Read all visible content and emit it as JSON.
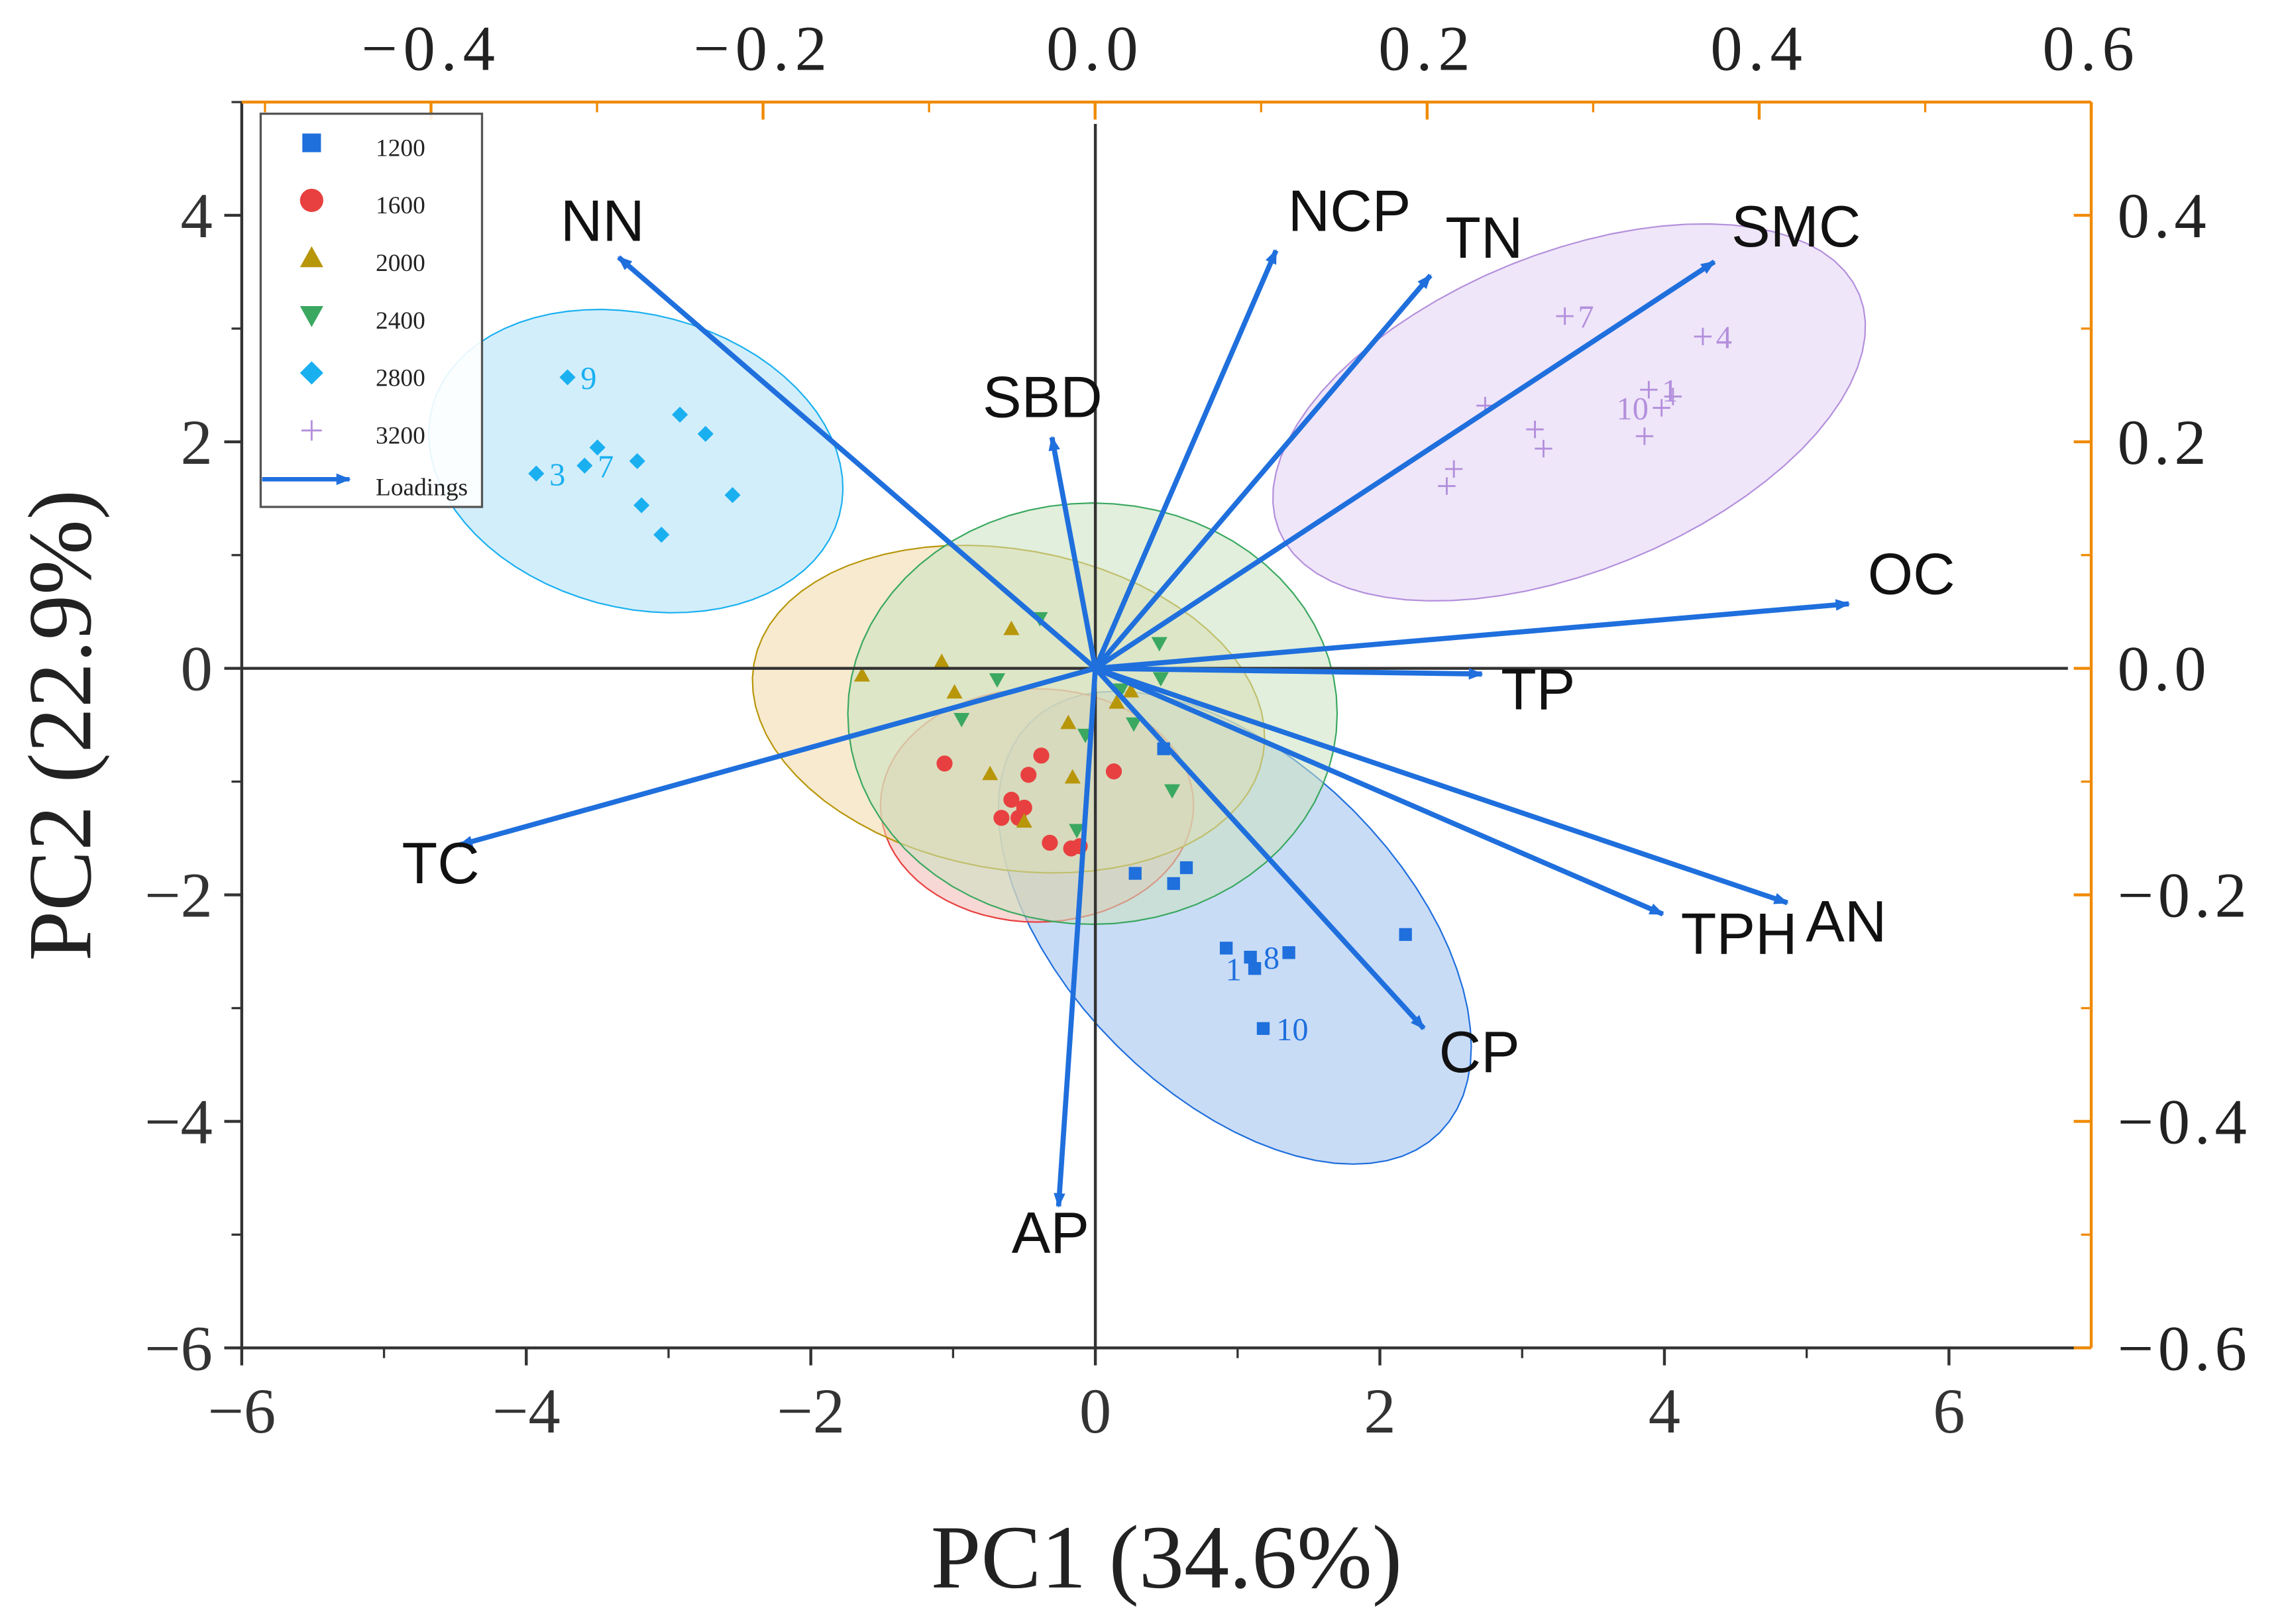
{
  "chart_data": {
    "type": "scatter",
    "subtype": "pca-biplot",
    "xlabel": "PC1 (34.6%)",
    "ylabel": "PC2 (22.9%)",
    "xlim": [
      -6,
      7
    ],
    "ylim": [
      -6,
      5
    ],
    "x_ticks": [
      "-6",
      "-4",
      "-2",
      "0",
      "2",
      "4",
      "6"
    ],
    "x_tick_values": [
      -6,
      -4,
      -2,
      0,
      2,
      4,
      6
    ],
    "y_ticks": [
      "-6",
      "-4",
      "-2",
      "0",
      "2",
      "4"
    ],
    "y_tick_values": [
      -6,
      -4,
      -2,
      0,
      2,
      4
    ],
    "top_axis": {
      "lim": [
        -0.514,
        0.6
      ],
      "ticks": [
        "-0.4",
        "-0.2",
        "0.0",
        "0.2",
        "0.4",
        "0.6"
      ],
      "tick_values": [
        -0.4,
        -0.2,
        0,
        0.2,
        0.4,
        0.6
      ]
    },
    "right_axis": {
      "lim": [
        -0.6,
        0.5
      ],
      "ticks": [
        "-0.6",
        "-0.4",
        "-0.2",
        "0.0",
        "0.2",
        "0.4"
      ],
      "tick_values": [
        -0.6,
        -0.4,
        -0.2,
        0,
        0.2,
        0.4
      ]
    },
    "secondary_axis_color": "#f08a00",
    "legend_position": "top-left",
    "series": [
      {
        "name": "1200",
        "marker": "square",
        "color": "#1f6fdd",
        "fill": "#9cc0ee",
        "ellipse": {
          "center": [
            0.98,
            -2.29
          ],
          "a": [
            1.44,
            -1.81
          ],
          "b": [
            0.83,
            1.04
          ]
        },
        "points": [
          [
            0.48,
            -0.71
          ],
          [
            0.28,
            -1.81
          ],
          [
            0.64,
            -1.76
          ],
          [
            0.55,
            -1.9
          ],
          [
            0.92,
            -2.47
          ],
          [
            1.09,
            -2.55,
            "8"
          ],
          [
            1.12,
            -2.65,
            "1"
          ],
          [
            1.36,
            -2.51
          ],
          [
            1.18,
            -3.18,
            "10"
          ],
          [
            2.18,
            -2.35
          ]
        ]
      },
      {
        "name": "1600",
        "marker": "circle",
        "color": "#e84040",
        "fill": "#f2b8b0",
        "ellipse": {
          "center": [
            -0.41,
            -1.21
          ],
          "a": [
            1.1,
            0
          ],
          "b": [
            0,
            1.03
          ]
        },
        "points": [
          [
            -1.06,
            -0.84
          ],
          [
            -0.38,
            -0.77
          ],
          [
            -0.47,
            -0.94
          ],
          [
            0.13,
            -0.91
          ],
          [
            -0.59,
            -1.16
          ],
          [
            -0.5,
            -1.23
          ],
          [
            -0.66,
            -1.32
          ],
          [
            -0.54,
            -1.32
          ],
          [
            -0.32,
            -1.54
          ],
          [
            -0.17,
            -1.59
          ],
          [
            -0.11,
            -1.57
          ]
        ]
      },
      {
        "name": "2000",
        "marker": "triangle-up",
        "color": "#b8960a",
        "fill": "#f0d9a8",
        "ellipse": {
          "center": [
            -0.61,
            -0.36
          ],
          "a": [
            1.79,
            -0.4
          ],
          "b": [
            -0.19,
            -1.39
          ]
        },
        "points": [
          [
            -1.64,
            -0.06
          ],
          [
            -1.08,
            0.06
          ],
          [
            -0.59,
            0.35
          ],
          [
            -0.99,
            -0.21
          ],
          [
            -0.74,
            -0.93
          ],
          [
            -0.19,
            -0.48
          ],
          [
            -0.16,
            -0.96
          ],
          [
            0.25,
            -0.2
          ],
          [
            -0.5,
            -1.35
          ],
          [
            0.15,
            -0.3
          ]
        ]
      },
      {
        "name": "2400",
        "marker": "triangle-down",
        "color": "#3aa860",
        "fill": "#c8e2c0",
        "ellipse": {
          "center": [
            -0.02,
            -0.4
          ],
          "a": [
            1.72,
            0
          ],
          "b": [
            0,
            1.86
          ]
        },
        "points": [
          [
            -0.39,
            0.44
          ],
          [
            0.45,
            0.22
          ],
          [
            -0.69,
            -0.1
          ],
          [
            -0.94,
            -0.45
          ],
          [
            -0.07,
            -0.59
          ],
          [
            0.27,
            -0.49
          ],
          [
            0.46,
            -0.09
          ],
          [
            0.54,
            -1.08
          ],
          [
            -0.13,
            -1.43
          ],
          [
            0.18,
            -0.19
          ]
        ]
      },
      {
        "name": "2800",
        "marker": "diamond",
        "color": "#1ab0f0",
        "fill": "#aee0f8",
        "ellipse": {
          "center": [
            -3.23,
            1.83
          ],
          "a": [
            1.43,
            -0.48
          ],
          "b": [
            -0.27,
            -1.25
          ]
        },
        "points": [
          [
            -3.71,
            2.57,
            "9"
          ],
          [
            -3.5,
            1.95
          ],
          [
            -3.93,
            1.72,
            "3"
          ],
          [
            -3.59,
            1.79,
            "7"
          ],
          [
            -3.22,
            1.83
          ],
          [
            -2.92,
            2.24
          ],
          [
            -2.74,
            2.07
          ],
          [
            -2.55,
            1.53
          ],
          [
            -3.19,
            1.44
          ],
          [
            -3.05,
            1.18
          ]
        ]
      },
      {
        "name": "3200",
        "marker": "plus",
        "color": "#b38fdc",
        "fill": "#e2d2f4",
        "ellipse": {
          "center": [
            3.33,
            2.26
          ],
          "a": [
            2.04,
            1.04
          ],
          "b": [
            0.42,
            -1.3
          ]
        },
        "points": [
          [
            3.3,
            3.11,
            "7"
          ],
          [
            4.27,
            2.93,
            "4"
          ],
          [
            3.89,
            2.46,
            "1"
          ],
          [
            4.06,
            2.4
          ],
          [
            3.98,
            2.3,
            "10"
          ],
          [
            2.74,
            2.32
          ],
          [
            3.09,
            2.11
          ],
          [
            3.15,
            1.94
          ],
          [
            3.86,
            2.05
          ],
          [
            2.52,
            1.76
          ],
          [
            2.47,
            1.61
          ]
        ]
      }
    ],
    "loadings_label": "Loadings",
    "loadings_color": "#1f6fdd",
    "loadings": [
      {
        "name": "NN",
        "x": -0.287,
        "y": 0.363
      },
      {
        "name": "NCP",
        "x": 0.109,
        "y": 0.369
      },
      {
        "name": "TN",
        "x": 0.202,
        "y": 0.347
      },
      {
        "name": "SMC",
        "x": 0.373,
        "y": 0.359
      },
      {
        "name": "SBD",
        "x": -0.026,
        "y": 0.204
      },
      {
        "name": "OC",
        "x": 0.454,
        "y": 0.057
      },
      {
        "name": "TP",
        "x": 0.233,
        "y": -0.005
      },
      {
        "name": "TC",
        "x": -0.383,
        "y": -0.156
      },
      {
        "name": "TPH",
        "x": 0.342,
        "y": -0.217
      },
      {
        "name": "AN",
        "x": 0.417,
        "y": -0.207
      },
      {
        "name": "CP",
        "x": 0.198,
        "y": -0.318
      },
      {
        "name": "AP",
        "x": -0.022,
        "y": -0.475
      }
    ]
  }
}
